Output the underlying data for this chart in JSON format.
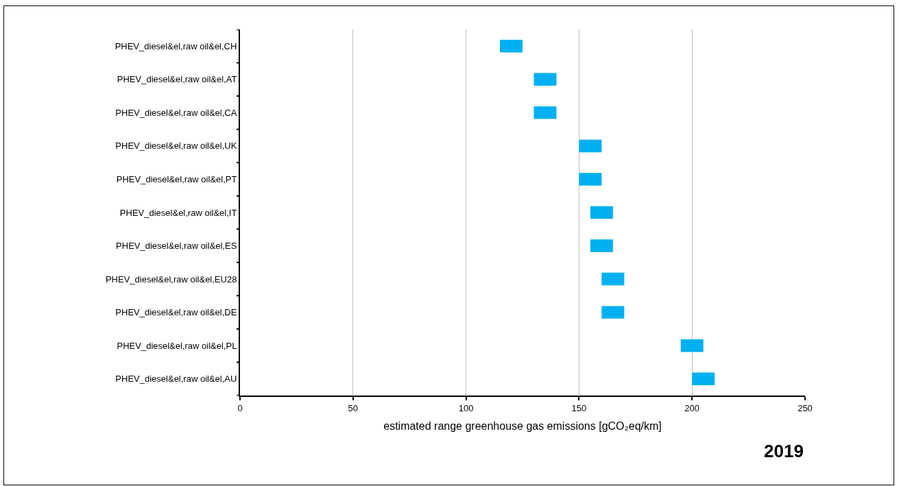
{
  "chart_data": {
    "type": "bar",
    "orientation": "horizontal",
    "categories": [
      "PHEV_diesel&el,raw oil&el,CH",
      "PHEV_diesel&el,raw oil&el,AT",
      "PHEV_diesel&el,raw oil&el,CA",
      "PHEV_diesel&el,raw oil&el,UK",
      "PHEV_diesel&el,raw oil&el,PT",
      "PHEV_diesel&el,raw oil&el,IT",
      "PHEV_diesel&el,raw oil&el,ES",
      "PHEV_diesel&el,raw oil&el,EU28",
      "PHEV_diesel&el,raw oil&el,DE",
      "PHEV_diesel&el,raw oil&el,PL",
      "PHEV_diesel&el,raw oil&el,AU"
    ],
    "values": [
      10,
      10,
      10,
      10,
      10,
      10,
      10,
      10,
      10,
      10,
      10
    ],
    "base": [
      115,
      130,
      130,
      150,
      150,
      155,
      155,
      160,
      160,
      195,
      200
    ],
    "color": "#00b0f0",
    "xlabel": "estimated range greenhouse gas emissions [gCO₂eq/km]",
    "xlim": [
      0,
      250
    ],
    "xticks": [
      0,
      50,
      100,
      150,
      200,
      250
    ],
    "grid": "x",
    "legend": false,
    "annotations": [
      "2019"
    ]
  }
}
